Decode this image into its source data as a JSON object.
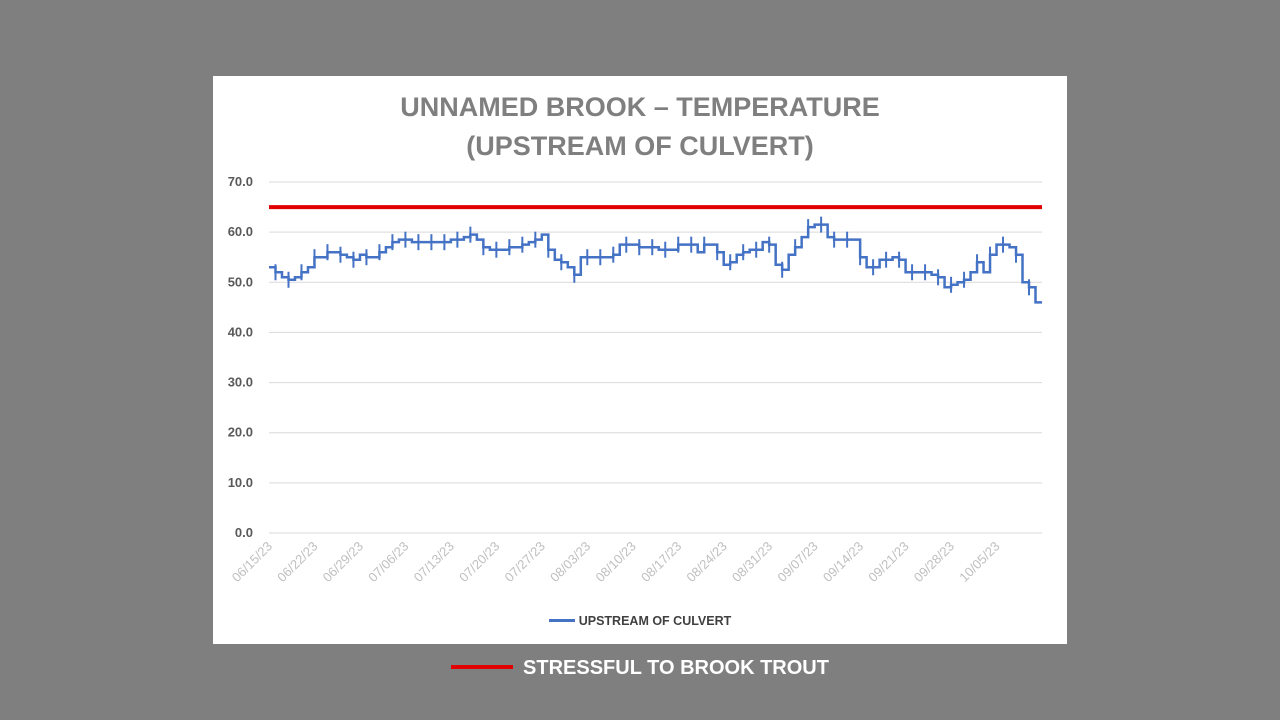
{
  "chart_data": {
    "type": "line",
    "title_lines": [
      "UNNAMED BROOK – TEMPERATURE",
      "(UPSTREAM OF CULVERT)"
    ],
    "ylim": [
      0,
      70
    ],
    "yticks": [
      "70.0",
      "60.0",
      "50.0",
      "40.0",
      "30.0",
      "20.0",
      "10.0",
      "0.0"
    ],
    "y_tick_values": [
      70,
      60,
      50,
      40,
      30,
      20,
      10,
      0
    ],
    "x_tick_labels": [
      "06/15/23",
      "06/22/23",
      "06/29/23",
      "07/06/23",
      "07/13/23",
      "07/20/23",
      "07/27/23",
      "08/03/23",
      "08/10/23",
      "08/17/23",
      "08/24/23",
      "08/31/23",
      "09/07/23",
      "09/14/23",
      "09/21/23",
      "09/28/23",
      "10/05/23"
    ],
    "grid": true,
    "legend_position": "bottom",
    "series": [
      {
        "name": "UPSTREAM OF CULVERT",
        "color": "#4472c4",
        "step_days": [
          "06/15/23",
          "06/16/23",
          "06/17/23",
          "06/18/23",
          "06/19/23",
          "06/20/23",
          "06/21/23",
          "06/22/23",
          "06/23/23",
          "06/24/23",
          "06/25/23",
          "06/26/23",
          "06/27/23",
          "06/28/23",
          "06/29/23",
          "06/30/23",
          "07/01/23",
          "07/02/23",
          "07/03/23",
          "07/04/23",
          "07/05/23",
          "07/06/23",
          "07/07/23",
          "07/08/23",
          "07/09/23",
          "07/10/23",
          "07/11/23",
          "07/12/23",
          "07/13/23",
          "07/14/23",
          "07/15/23",
          "07/16/23",
          "07/17/23",
          "07/18/23",
          "07/19/23",
          "07/20/23",
          "07/21/23",
          "07/22/23",
          "07/23/23",
          "07/24/23",
          "07/25/23",
          "07/26/23",
          "07/27/23",
          "07/28/23",
          "07/29/23",
          "07/30/23",
          "07/31/23",
          "08/01/23",
          "08/02/23",
          "08/03/23",
          "08/04/23",
          "08/05/23",
          "08/06/23",
          "08/07/23",
          "08/08/23",
          "08/09/23",
          "08/10/23",
          "08/11/23",
          "08/12/23",
          "08/13/23",
          "08/14/23",
          "08/15/23",
          "08/16/23",
          "08/17/23",
          "08/18/23",
          "08/19/23",
          "08/20/23",
          "08/21/23",
          "08/22/23",
          "08/23/23",
          "08/24/23",
          "08/25/23",
          "08/26/23",
          "08/27/23",
          "08/28/23",
          "08/29/23",
          "08/30/23",
          "08/31/23",
          "09/01/23",
          "09/02/23",
          "09/03/23",
          "09/04/23",
          "09/05/23",
          "09/06/23",
          "09/07/23",
          "09/08/23",
          "09/09/23",
          "09/10/23",
          "09/11/23",
          "09/12/23",
          "09/13/23",
          "09/14/23",
          "09/15/23",
          "09/16/23",
          "09/17/23",
          "09/18/23",
          "09/19/23",
          "09/20/23",
          "09/21/23",
          "09/22/23",
          "09/23/23",
          "09/24/23",
          "09/25/23",
          "09/26/23",
          "09/27/23",
          "09/28/23",
          "09/29/23",
          "09/30/23",
          "10/01/23",
          "10/02/23",
          "10/03/23",
          "10/04/23",
          "10/05/23",
          "10/06/23",
          "10/07/23",
          "10/08/23",
          "10/09/23",
          "10/10/23",
          "10/11/23"
        ],
        "day_values": [
          53.0,
          52.0,
          51.0,
          50.5,
          51.0,
          52.0,
          53.0,
          55.0,
          55.0,
          56.0,
          56.0,
          55.5,
          55.0,
          54.5,
          55.5,
          55.0,
          55.0,
          56.0,
          57.0,
          58.0,
          58.5,
          58.5,
          58.0,
          58.0,
          58.0,
          58.0,
          58.0,
          58.0,
          58.5,
          58.5,
          59.0,
          59.5,
          58.5,
          57.0,
          56.5,
          56.5,
          56.5,
          57.0,
          57.0,
          57.5,
          58.0,
          58.5,
          59.5,
          56.5,
          54.5,
          54.0,
          53.0,
          51.5,
          55.0,
          55.0,
          55.0,
          55.0,
          55.0,
          55.5,
          57.5,
          57.5,
          57.5,
          57.0,
          57.0,
          57.0,
          56.5,
          56.5,
          56.5,
          57.5,
          57.5,
          57.5,
          56.0,
          57.5,
          57.5,
          56.0,
          53.5,
          54.0,
          55.5,
          56.0,
          56.5,
          56.5,
          58.0,
          57.5,
          53.5,
          52.5,
          55.5,
          57.0,
          59.0,
          61.0,
          61.5,
          61.5,
          59.0,
          58.5,
          58.5,
          58.5,
          58.5,
          55.0,
          53.0,
          53.0,
          54.5,
          54.5,
          55.0,
          54.5,
          52.0,
          52.0,
          52.0,
          52.0,
          51.5,
          51.0,
          49.0,
          49.5,
          50.0,
          50.5,
          52.0,
          54.0,
          52.0,
          55.5,
          57.5,
          57.5,
          57.0,
          55.5,
          50.0,
          49.0,
          46.0
        ]
      }
    ],
    "reference_lines": [
      {
        "name": "STRESSFUL TO BROOK TROUT",
        "y": 65,
        "color": "#e00000"
      }
    ]
  },
  "legend": {
    "series_label": "UPSTREAM OF CULVERT",
    "reference_label": "STRESSFUL TO BROOK TROUT"
  }
}
